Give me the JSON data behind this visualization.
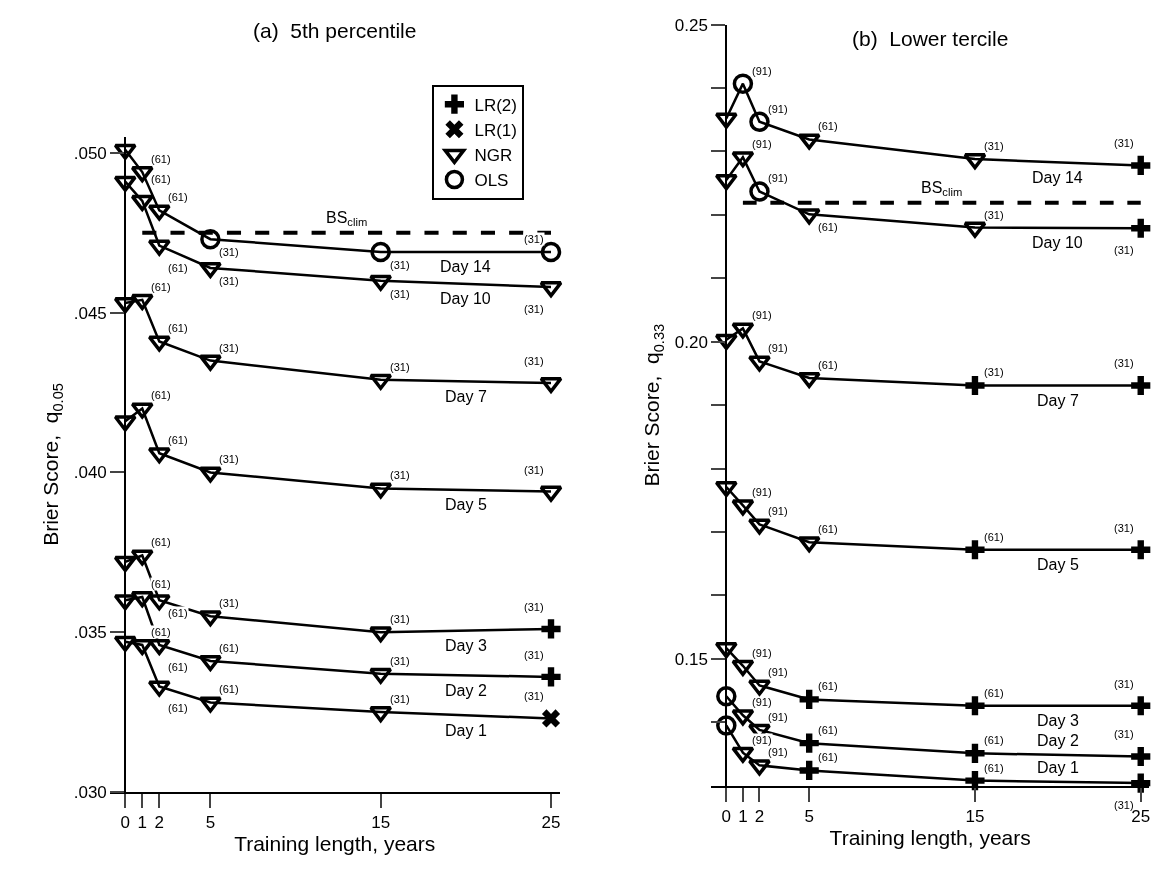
{
  "chart_data": [
    {
      "type": "line",
      "title": "(a)  5th percentile",
      "xlabel": "Training length, years",
      "ylabel": "Brier Score,  q$_{0.05}$",
      "xlim": [
        -0.9,
        25.5
      ],
      "xticks": [
        0,
        1,
        2,
        5,
        15,
        25
      ],
      "ylim": [
        0.03,
        0.0505
      ],
      "yticks": [
        {
          "value": 0.03,
          "label": ".030"
        },
        {
          "value": 0.035,
          "label": ".035"
        },
        {
          "value": 0.04,
          "label": ".040"
        },
        {
          "value": 0.045,
          "label": ".045"
        },
        {
          "value": 0.05,
          "label": ".050"
        }
      ],
      "legend": "top right",
      "series": [
        {
          "name": "Day 14",
          "color": "#000000",
          "x": [
            0,
            1,
            2,
            5,
            15,
            25
          ],
          "values": [
            0.0501,
            0.0494,
            0.0482,
            0.0473,
            0.0469,
            0.0469
          ]
        },
        {
          "name": "Day 10",
          "color": "#000000",
          "x": [
            0,
            1,
            2,
            5,
            15,
            25
          ],
          "values": [
            0.0491,
            0.0485,
            0.0471,
            0.0464,
            0.046,
            0.0458
          ]
        },
        {
          "name": "Day 7",
          "color": "#000000",
          "x": [
            0,
            1,
            2,
            5,
            15,
            25
          ],
          "values": [
            0.0453,
            0.0454,
            0.0441,
            0.0435,
            0.0429,
            0.0428
          ]
        },
        {
          "name": "Day 5",
          "color": "#000000",
          "x": [
            0,
            1,
            2,
            5,
            15,
            25
          ],
          "values": [
            0.0416,
            0.042,
            0.0406,
            0.04,
            0.0395,
            0.0394
          ]
        },
        {
          "name": "Day 3",
          "color": "#000000",
          "x": [
            0,
            1,
            2,
            5,
            15,
            25
          ],
          "values": [
            0.0372,
            0.0374,
            0.036,
            0.0355,
            0.035,
            0.0351
          ]
        },
        {
          "name": "Day 2",
          "color": "#000000",
          "x": [
            0,
            1,
            2,
            5,
            15,
            25
          ],
          "values": [
            0.036,
            0.0361,
            0.0346,
            0.0341,
            0.0337,
            0.0336
          ]
        },
        {
          "name": "Day 1",
          "color": "#000000",
          "x": [
            0,
            1,
            2,
            5,
            15,
            25
          ],
          "values": [
            0.0347,
            0.0346,
            0.0333,
            0.0328,
            0.0325,
            0.0323
          ]
        },
        {
          "name": "BS$_{clim}$",
          "line_style": "dashed",
          "color": "#000000",
          "x": [
            1,
            25
          ],
          "values": [
            0.0475,
            0.0475
          ]
        },
        {
          "name": "LR(2)",
          "type": "scatter",
          "marker": "cross",
          "color": "#000000",
          "x": [
            25,
            25
          ],
          "values": [
            0.0351,
            0.0336
          ]
        },
        {
          "name": "LR(1)",
          "type": "scatter",
          "marker": "x",
          "color": "#000000",
          "x": [
            25
          ],
          "values": [
            0.0323
          ]
        },
        {
          "name": "NGR",
          "type": "scatter",
          "marker": "triangle",
          "color": "#000000",
          "x": [
            0,
            1,
            2,
            0,
            1,
            2,
            5,
            15,
            25,
            0,
            1,
            2,
            5,
            15,
            25,
            0,
            1,
            2,
            5,
            15,
            25,
            0,
            1,
            2,
            5,
            15,
            0,
            1,
            2,
            5,
            15,
            0,
            1,
            2,
            5,
            15
          ],
          "values": [
            0.0501,
            0.0494,
            0.0482,
            0.0491,
            0.0485,
            0.0471,
            0.0464,
            0.046,
            0.0458,
            0.0453,
            0.0454,
            0.0441,
            0.0435,
            0.0429,
            0.0428,
            0.0416,
            0.042,
            0.0406,
            0.04,
            0.0395,
            0.0394,
            0.0372,
            0.0374,
            0.036,
            0.0355,
            0.035,
            0.036,
            0.0361,
            0.0346,
            0.0341,
            0.0337,
            0.0347,
            0.0346,
            0.0333,
            0.0328,
            0.0325
          ]
        },
        {
          "name": "OLS",
          "type": "scatter",
          "marker": "circle",
          "color": "#000000",
          "x": [
            5,
            15,
            25
          ],
          "values": [
            0.0473,
            0.0469,
            0.0469
          ]
        }
      ],
      "annotations": [
        {
          "text": "(61)",
          "x": 1,
          "y": 0.0494
        },
        {
          "text": "(61)",
          "x": 1,
          "y": 0.0485
        },
        {
          "text": "(61)",
          "x": 1,
          "y": 0.0454
        },
        {
          "text": "(61)",
          "x": 1,
          "y": 0.042
        },
        {
          "text": "(61)",
          "x": 1,
          "y": 0.0374
        },
        {
          "text": "(61)",
          "x": 1,
          "y": 0.0361
        },
        {
          "text": "(61)",
          "x": 1,
          "y": 0.0346
        },
        {
          "text": "(61)",
          "x": 2,
          "y": 0.0482
        },
        {
          "text": "(61)",
          "x": 2,
          "y": 0.0471
        },
        {
          "text": "(61)",
          "x": 2,
          "y": 0.0441
        },
        {
          "text": "(61)",
          "x": 2,
          "y": 0.0406
        },
        {
          "text": "(61)",
          "x": 2,
          "y": 0.036
        },
        {
          "text": "(61)",
          "x": 2,
          "y": 0.0346
        },
        {
          "text": "(61)",
          "x": 2,
          "y": 0.0333
        },
        {
          "text": "(31)",
          "x": 5,
          "y": 0.0473
        },
        {
          "text": "(31)",
          "x": 5,
          "y": 0.0464
        },
        {
          "text": "(31)",
          "x": 5,
          "y": 0.0435
        },
        {
          "text": "(31)",
          "x": 5,
          "y": 0.04
        },
        {
          "text": "(31)",
          "x": 5,
          "y": 0.0355
        },
        {
          "text": "(61)",
          "x": 5,
          "y": 0.0341
        },
        {
          "text": "(61)",
          "x": 5,
          "y": 0.0328
        },
        {
          "text": "(31)",
          "x": 15,
          "y": 0.0469
        },
        {
          "text": "(31)",
          "x": 15,
          "y": 0.046
        },
        {
          "text": "(31)",
          "x": 15,
          "y": 0.0429
        },
        {
          "text": "(31)",
          "x": 15,
          "y": 0.0395
        },
        {
          "text": "(31)",
          "x": 15,
          "y": 0.035
        },
        {
          "text": "(31)",
          "x": 15,
          "y": 0.0337
        },
        {
          "text": "(31)",
          "x": 15,
          "y": 0.0325
        },
        {
          "text": "(31)",
          "x": 25,
          "y": 0.0469
        },
        {
          "text": "(31)",
          "x": 25,
          "y": 0.0458
        },
        {
          "text": "(31)",
          "x": 25,
          "y": 0.0428
        },
        {
          "text": "(31)",
          "x": 25,
          "y": 0.0394
        },
        {
          "text": "(31)",
          "x": 25,
          "y": 0.0351
        },
        {
          "text": "(31)",
          "x": 25,
          "y": 0.0336
        },
        {
          "text": "(31)",
          "x": 25,
          "y": 0.0323
        }
      ]
    },
    {
      "type": "line",
      "title": "(b)  Lower tercile",
      "xlabel": "Training length, years",
      "ylabel": "Brier Score,  q$_{0.33}$",
      "xlim": [
        -0.9,
        25.5
      ],
      "xticks": [
        0,
        1,
        2,
        5,
        15,
        25
      ],
      "ylim": [
        0.13,
        0.25
      ],
      "yticks": [
        {
          "value": 0.14,
          "label": null
        },
        {
          "value": 0.15,
          "label": "0.15"
        },
        {
          "value": 0.16,
          "label": null
        },
        {
          "value": 0.17,
          "label": null
        },
        {
          "value": 0.18,
          "label": null
        },
        {
          "value": 0.19,
          "label": null
        },
        {
          "value": 0.2,
          "label": "0.20"
        },
        {
          "value": 0.21,
          "label": null
        },
        {
          "value": 0.22,
          "label": null
        },
        {
          "value": 0.23,
          "label": null
        },
        {
          "value": 0.24,
          "label": null
        },
        {
          "value": 0.25,
          "label": "0.25"
        }
      ],
      "series": [
        {
          "name": "Day 14",
          "color": "#000000",
          "x": [
            0,
            1,
            2,
            5,
            15,
            25
          ],
          "values": [
            0.2352,
            0.2407,
            0.2347,
            0.2319,
            0.2288,
            0.2278
          ]
        },
        {
          "name": "Day 10",
          "color": "#000000",
          "x": [
            0,
            1,
            2,
            5,
            15,
            25
          ],
          "values": [
            0.2255,
            0.2291,
            0.2237,
            0.2201,
            0.218,
            0.2179
          ]
        },
        {
          "name": "Day 7",
          "color": "#000000",
          "x": [
            0,
            1,
            2,
            5,
            15,
            25
          ],
          "values": [
            0.2003,
            0.2021,
            0.1969,
            0.1943,
            0.1931,
            0.1931
          ]
        },
        {
          "name": "Day 5",
          "color": "#000000",
          "x": [
            0,
            1,
            2,
            5,
            15,
            25
          ],
          "values": [
            0.1771,
            0.1742,
            0.1712,
            0.1684,
            0.1672,
            0.1672
          ]
        },
        {
          "name": "Day 3",
          "color": "#000000",
          "x": [
            0,
            1,
            2,
            5,
            15,
            25
          ],
          "values": [
            0.1517,
            0.1489,
            0.1458,
            0.1436,
            0.1426,
            0.1426
          ]
        },
        {
          "name": "Day 2",
          "color": "#000000",
          "x": [
            0,
            1,
            2,
            5,
            15,
            25
          ],
          "values": [
            0.1441,
            0.1411,
            0.1388,
            0.1367,
            0.1351,
            0.1346
          ]
        },
        {
          "name": "Day 1",
          "color": "#000000",
          "x": [
            0,
            1,
            2,
            5,
            15,
            25
          ],
          "values": [
            0.1395,
            0.1352,
            0.1332,
            0.1324,
            0.1308,
            0.1304
          ]
        },
        {
          "name": "BS$_{clim}$",
          "line_style": "dashed",
          "color": "#000000",
          "x": [
            1,
            25
          ],
          "values": [
            0.2219,
            0.2219
          ]
        },
        {
          "type": "scatter",
          "marker": "cross",
          "color": "#000000",
          "x": [
            25,
            25,
            15,
            25,
            15,
            25,
            5,
            15,
            25,
            5,
            15,
            25,
            5,
            15,
            25
          ],
          "values": [
            0.2278,
            0.2179,
            0.1931,
            0.1931,
            0.1672,
            0.1672,
            0.1436,
            0.1426,
            0.1426,
            0.1367,
            0.1351,
            0.1346,
            0.1324,
            0.1308,
            0.1304
          ]
        },
        {
          "type": "scatter",
          "marker": "triangle",
          "color": "#000000",
          "x": [
            0,
            5,
            15,
            0,
            1,
            5,
            15,
            0,
            1,
            2,
            5,
            0,
            1,
            2,
            5,
            0,
            1,
            2,
            1,
            2,
            1,
            2
          ],
          "values": [
            0.2352,
            0.2319,
            0.2288,
            0.2255,
            0.2291,
            0.2201,
            0.218,
            0.2003,
            0.2021,
            0.1969,
            0.1943,
            0.1771,
            0.1742,
            0.1712,
            0.1684,
            0.1517,
            0.1489,
            0.1458,
            0.1411,
            0.1388,
            0.1352,
            0.1332
          ]
        },
        {
          "type": "scatter",
          "marker": "circle",
          "color": "#000000",
          "x": [
            1,
            2,
            2,
            0,
            0
          ],
          "values": [
            0.2407,
            0.2347,
            0.2237,
            0.1441,
            0.1395
          ]
        }
      ],
      "annotations": [
        {
          "text": "(91)",
          "x": 1,
          "y": 0.2407
        },
        {
          "text": "(91)",
          "x": 1,
          "y": 0.2291
        },
        {
          "text": "(91)",
          "x": 1,
          "y": 0.2021
        },
        {
          "text": "(91)",
          "x": 1,
          "y": 0.1742
        },
        {
          "text": "(91)",
          "x": 1,
          "y": 0.1489
        },
        {
          "text": "(91)",
          "x": 1,
          "y": 0.1411
        },
        {
          "text": "(91)",
          "x": 1,
          "y": 0.1352
        },
        {
          "text": "(91)",
          "x": 2,
          "y": 0.2347
        },
        {
          "text": "(91)",
          "x": 2,
          "y": 0.2237
        },
        {
          "text": "(91)",
          "x": 2,
          "y": 0.1969
        },
        {
          "text": "(91)",
          "x": 2,
          "y": 0.1712
        },
        {
          "text": "(91)",
          "x": 2,
          "y": 0.1458
        },
        {
          "text": "(91)",
          "x": 2,
          "y": 0.1388
        },
        {
          "text": "(91)",
          "x": 2,
          "y": 0.1332
        },
        {
          "text": "(61)",
          "x": 5,
          "y": 0.2319
        },
        {
          "text": "(61)",
          "x": 5,
          "y": 0.2201
        },
        {
          "text": "(61)",
          "x": 5,
          "y": 0.1943
        },
        {
          "text": "(61)",
          "x": 5,
          "y": 0.1684
        },
        {
          "text": "(61)",
          "x": 5,
          "y": 0.1436
        },
        {
          "text": "(61)",
          "x": 5,
          "y": 0.1367
        },
        {
          "text": "(61)",
          "x": 5,
          "y": 0.1324
        },
        {
          "text": "(31)",
          "x": 15,
          "y": 0.2288
        },
        {
          "text": "(31)",
          "x": 15,
          "y": 0.218
        },
        {
          "text": "(31)",
          "x": 15,
          "y": 0.1931
        },
        {
          "text": "(61)",
          "x": 15,
          "y": 0.1672
        },
        {
          "text": "(61)",
          "x": 15,
          "y": 0.1426
        },
        {
          "text": "(61)",
          "x": 15,
          "y": 0.1351
        },
        {
          "text": "(61)",
          "x": 15,
          "y": 0.1308
        },
        {
          "text": "(31)",
          "x": 25,
          "y": 0.2278
        },
        {
          "text": "(31)",
          "x": 25,
          "y": 0.2179
        },
        {
          "text": "(31)",
          "x": 25,
          "y": 0.1931
        },
        {
          "text": "(31)",
          "x": 25,
          "y": 0.1672
        },
        {
          "text": "(31)",
          "x": 25,
          "y": 0.1426
        },
        {
          "text": "(31)",
          "x": 25,
          "y": 0.1346
        },
        {
          "text": "(31)",
          "x": 25,
          "y": 0.1304
        }
      ]
    }
  ]
}
